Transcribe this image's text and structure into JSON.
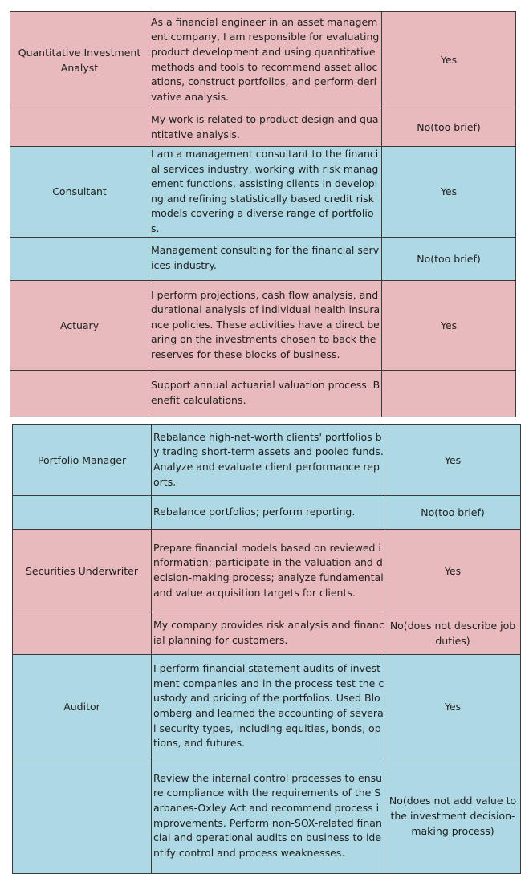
{
  "tables": [
    {
      "rows": [
        {
          "role": "Quantitative Investment Analyst",
          "description": "As a financial engineer in an asset management company, I am responsible for evaluating product development and using quantitative methods and tools to recommend asset allocations, construct portfolios, and perform derivative analysis.",
          "verdict": "Yes",
          "color": "pink"
        },
        {
          "role": "",
          "description": "My work is related to product design and quantitative analysis.",
          "verdict": "No(too brief)",
          "color": "pink"
        },
        {
          "role": "Consultant",
          "description": "I am a management consultant to the financial services industry, working with risk management functions, assisting clients in developing and refining statistically based credit risk models covering a diverse range of portfolios.",
          "verdict": "Yes",
          "color": "blue"
        },
        {
          "role": "",
          "description": "Management consulting for the financial services industry.",
          "verdict": "No(too brief)",
          "color": "blue"
        },
        {
          "role": "Actuary",
          "description": "I perform projections, cash flow analysis, and durational analysis of individual health insurance policies. These activities have a direct bearing on the investments chosen to back the reserves for these blocks of business.",
          "verdict": "Yes",
          "color": "pink"
        },
        {
          "role": "",
          "description": "Support annual actuarial valuation process. Benefit calculations.",
          "verdict": "",
          "color": "pink"
        }
      ]
    },
    {
      "rows": [
        {
          "role": "Portfolio Manager",
          "description": "Rebalance high-net-worth clients' portfolios by trading short-term assets and pooled funds. Analyze and evaluate client performance reports.",
          "verdict": "Yes",
          "color": "blue"
        },
        {
          "role": "",
          "description": "Rebalance portfolios; perform reporting.",
          "verdict": "No(too brief)",
          "color": "blue"
        },
        {
          "role": "Securities Underwriter",
          "description": "Prepare financial models based on reviewed information; participate in the valuation and decision-making process; analyze fundamental and value acquisition targets for clients.",
          "verdict": "Yes",
          "color": "pink"
        },
        {
          "role": "",
          "description": "My company provides risk analysis and financial planning for customers.",
          "verdict": "No(does not describe job duties)",
          "color": "pink"
        },
        {
          "role": "Auditor",
          "description": "I perform financial statement audits of investment companies and in the process test the custody and pricing of the portfolios. Used Bloomberg and learned the accounting of several security types, including equities, bonds, options, and futures.",
          "verdict": "Yes",
          "color": "blue"
        },
        {
          "role": "",
          "description": "Review the internal control processes to ensure compliance with the requirements of the Sarbanes-Oxley Act and recommend process improvements. Perform non-SOX-related financial and operational audits on business to identify control and process weaknesses.",
          "verdict": "No(does not add value to the investment decision-making process)",
          "color": "blue"
        }
      ]
    }
  ]
}
